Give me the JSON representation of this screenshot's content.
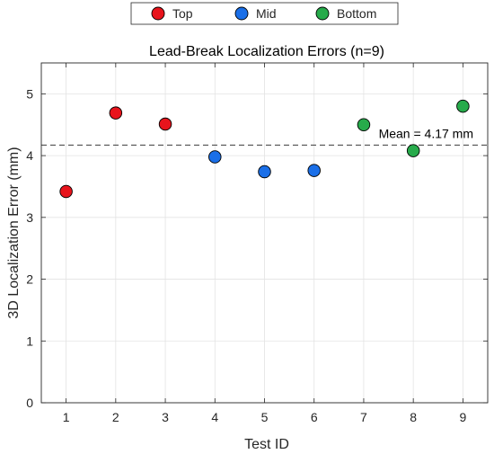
{
  "chart_data": {
    "type": "scatter",
    "title": "Lead-Break Localization Errors (n=9)",
    "xlabel": "Test ID",
    "ylabel": "3D Localization Error (mm)",
    "xlim": [
      0.5,
      9.5
    ],
    "ylim": [
      0,
      5.5
    ],
    "xticks": [
      1,
      2,
      3,
      4,
      5,
      6,
      7,
      8,
      9
    ],
    "yticks": [
      0,
      1,
      2,
      3,
      4,
      5
    ],
    "grid": true,
    "legend_position": "top-outside",
    "series": [
      {
        "name": "Top",
        "color": "#e8141c",
        "x": [
          1,
          2,
          3
        ],
        "y": [
          3.42,
          4.69,
          4.51
        ]
      },
      {
        "name": "Mid",
        "color": "#1a6fe8",
        "x": [
          4,
          5,
          6
        ],
        "y": [
          3.98,
          3.74,
          3.76
        ]
      },
      {
        "name": "Bottom",
        "color": "#27ab4b",
        "x": [
          7,
          8,
          9
        ],
        "y": [
          4.5,
          4.08,
          4.8
        ]
      }
    ],
    "mean_line": {
      "value": 4.17,
      "label": "Mean = 4.17 mm"
    }
  }
}
